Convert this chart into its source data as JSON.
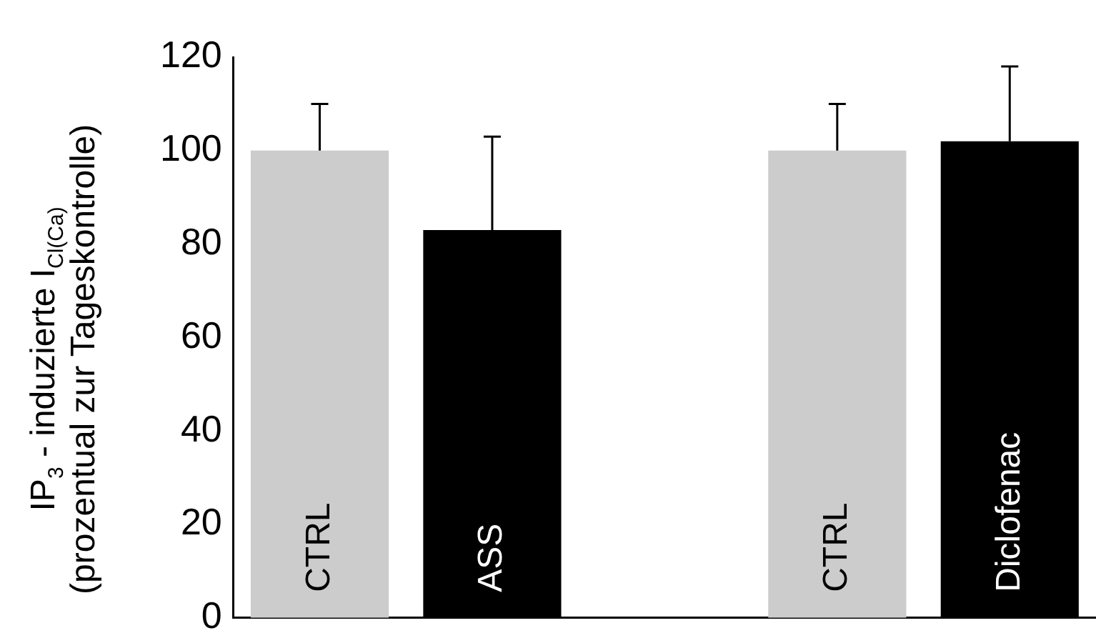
{
  "chart_data": {
    "type": "bar",
    "ylabel": "IP$_{3}$ - induzierte I$_{Cl(Ca)}$\n(prozentual zur Tageskontrolle)",
    "categories": [
      "CTRL",
      "ASS",
      null,
      "CTRL",
      "Diclofenac"
    ],
    "values": [
      100,
      83,
      null,
      100,
      102
    ],
    "colors": [
      "#cccccc",
      "#000000",
      "#cccccc",
      "#cccccc",
      "#000000"
    ],
    "errors": [
      [
        100,
        110
      ],
      [
        83,
        103
      ],
      null,
      [
        100,
        110
      ],
      [
        102,
        118
      ]
    ],
    "ylim": [
      0,
      120
    ],
    "yticks": [
      0,
      20,
      40,
      60,
      80,
      100,
      120
    ],
    "grid": false,
    "legend": false
  }
}
